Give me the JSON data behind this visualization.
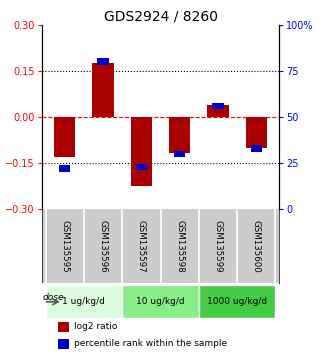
{
  "title": "GDS2924 / 8260",
  "samples": [
    "GSM135595",
    "GSM135596",
    "GSM135597",
    "GSM135598",
    "GSM135599",
    "GSM135600"
  ],
  "log2_ratio": [
    -0.13,
    0.175,
    -0.225,
    -0.115,
    0.04,
    -0.1
  ],
  "percentile_rank": [
    22,
    80,
    23,
    30,
    56,
    33
  ],
  "ylim_left": [
    -0.3,
    0.3
  ],
  "ylim_right": [
    0,
    100
  ],
  "yticks_left": [
    -0.3,
    -0.15,
    0,
    0.15,
    0.3
  ],
  "yticks_right": [
    0,
    25,
    50,
    75,
    100
  ],
  "ytick_labels_right": [
    "0",
    "25",
    "50",
    "75",
    "100%"
  ],
  "hlines": [
    0.15,
    0.0,
    -0.15
  ],
  "hline_styles": [
    "dotted",
    "dashed",
    "dotted"
  ],
  "hline_colors": [
    "black",
    "red",
    "black"
  ],
  "bar_color": "#aa0000",
  "dot_color": "#0000cc",
  "bar_width": 0.55,
  "dose_groups": [
    {
      "label": "1 ug/kg/d",
      "samples": [
        0,
        1
      ],
      "color": "#ddfcdd"
    },
    {
      "label": "10 ug/kg/d",
      "samples": [
        2,
        3
      ],
      "color": "#88ee88"
    },
    {
      "label": "1000 ug/kg/d",
      "samples": [
        4,
        5
      ],
      "color": "#44cc44"
    }
  ],
  "dose_label": "dose",
  "legend_items": [
    {
      "color": "#aa0000",
      "label": "log2 ratio"
    },
    {
      "color": "#0000cc",
      "label": "percentile rank within the sample"
    }
  ],
  "background_color": "#ffffff",
  "plot_bg_color": "#ffffff",
  "sample_bg_color": "#cccccc",
  "title_fontsize": 10,
  "tick_fontsize": 7,
  "label_fontsize": 7
}
